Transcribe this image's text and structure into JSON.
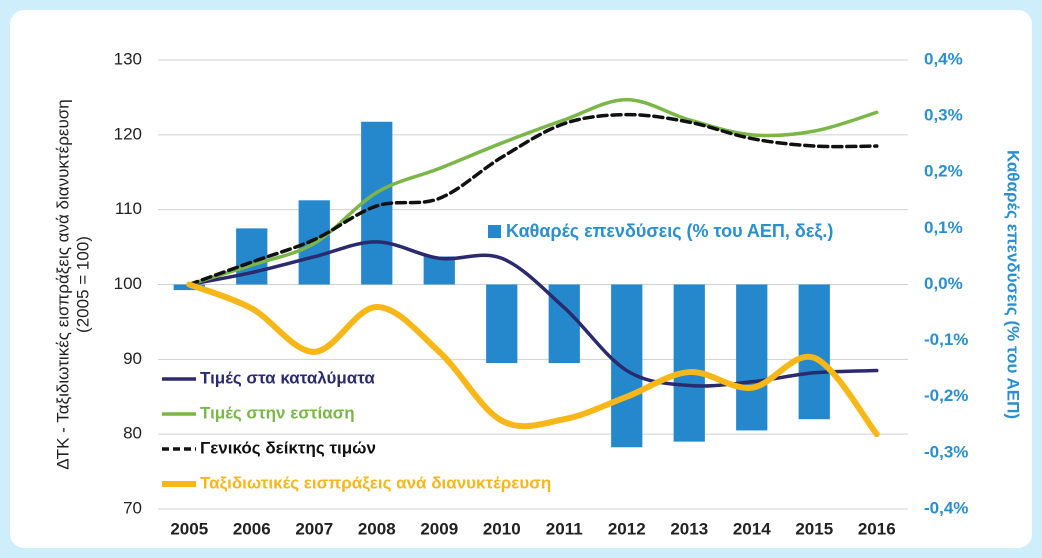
{
  "chart_data": {
    "type": "bar-line",
    "ylabel": [
      "ΔΤΚ - Ταξιδιωτικές εισπράξεις ανά διανυκτέρευση",
      "(2005 = 100)"
    ],
    "y2label": "Καθαρές επενδύσεις (% του ΑΕΠ)",
    "categories": [
      "2005",
      "2006",
      "2007",
      "2008",
      "2009",
      "2010",
      "2011",
      "2012",
      "2013",
      "2014",
      "2015",
      "2016"
    ],
    "ylim": [
      70,
      130
    ],
    "yticks": [
      70,
      80,
      90,
      100,
      110,
      120,
      130
    ],
    "y2lim": [
      -0.4,
      0.4
    ],
    "y2ticks": [
      {
        "value": -0.4,
        "label": "-0,4%"
      },
      {
        "value": -0.3,
        "label": "-0,3%"
      },
      {
        "value": -0.2,
        "label": "-0,2%"
      },
      {
        "value": -0.1,
        "label": "-0,1%"
      },
      {
        "value": 0,
        "label": "0,0%"
      },
      {
        "value": 0.1,
        "label": "0,1%"
      },
      {
        "value": 0.2,
        "label": "0,2%"
      },
      {
        "value": 0.3,
        "label": "0,3%"
      },
      {
        "value": 0.4,
        "label": "0,4%"
      }
    ],
    "grid": true,
    "series": [
      {
        "name": "Καθαρές επενδύσεις (% του ΑΕΠ, δεξ.)",
        "type": "bar",
        "axis": "y2",
        "color": "#2688cc",
        "values": [
          -0.01,
          0.1,
          0.15,
          0.29,
          0.05,
          -0.14,
          -0.14,
          -0.29,
          -0.28,
          -0.26,
          -0.24,
          null
        ]
      },
      {
        "name": "Τιμές στα καταλύματα",
        "type": "line",
        "color": "#2b2a6e",
        "style": "solid",
        "values": [
          100,
          101.6,
          103.7,
          105.7,
          103.5,
          103.5,
          96.9,
          88.5,
          86.5,
          87,
          88.2,
          88.5
        ]
      },
      {
        "name": "Τιμές στην εστίαση",
        "type": "line",
        "color": "#7ab648",
        "style": "solid",
        "values": [
          100,
          102.6,
          105.5,
          112.3,
          115.5,
          118.9,
          122,
          124.7,
          122,
          120,
          120.5,
          123
        ]
      },
      {
        "name": "Γενικός δείκτης τιμών",
        "type": "line",
        "color": "#111111",
        "style": "dashed",
        "values": [
          100,
          103,
          106,
          110.5,
          111.5,
          117,
          121.5,
          122.7,
          121.7,
          119.5,
          118.5,
          118.5
        ]
      },
      {
        "name": "Ταξιδιωτικές εισπράξεις ανά διανυκτέρευση",
        "type": "line",
        "color": "#f7b719",
        "style": "thick",
        "values": [
          100,
          96.8,
          91,
          97,
          91,
          81.8,
          82,
          85,
          88.3,
          86.2,
          90.2,
          80
        ]
      }
    ]
  }
}
